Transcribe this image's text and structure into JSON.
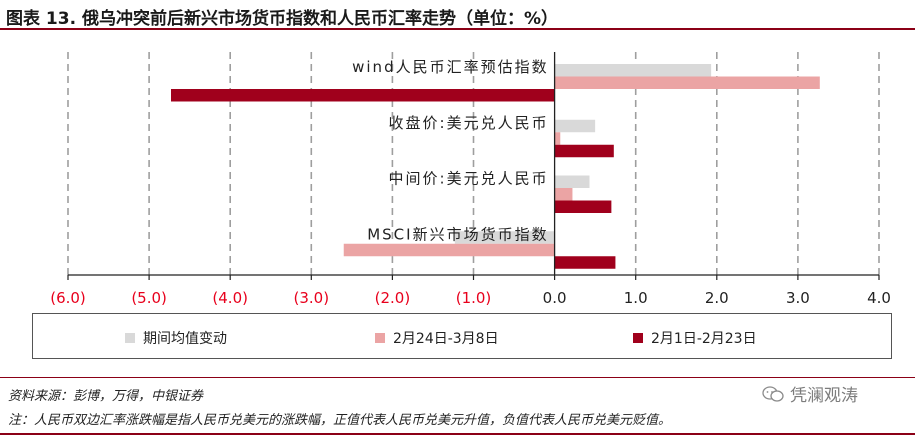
{
  "title": "图表 13. 俄乌冲突前后新兴市场货币指数和人民币汇率走势（单位：%）",
  "colors": {
    "accent_rule": "#8b0016",
    "series_avg": "#d9d9d9",
    "series_after": "#eba4a4",
    "series_before": "#a0001c",
    "negative_tick": "#e8001c",
    "grid": "#9e9e9e"
  },
  "chart_data": {
    "type": "bar",
    "orientation": "horizontal",
    "categories": [
      "wind人民币汇率预估指数",
      "收盘价:美元兑人民币",
      "中间价:美元兑人民币",
      "MSCI新兴市场货币指数"
    ],
    "category_display": [
      "wind人民币汇率预估指数",
      "收盘价:美元兑人民币",
      "中间价:美元兑人民币",
      "MSCI新兴市场货币指数"
    ],
    "series": [
      {
        "name": "期间均值变动",
        "values": [
          1.93,
          0.5,
          0.43,
          -1.23
        ]
      },
      {
        "name": "2月24日-3月8日",
        "values": [
          3.27,
          0.07,
          0.22,
          -2.6
        ]
      },
      {
        "name": "2月1日-2月23日",
        "values": [
          -4.73,
          0.73,
          0.7,
          0.75
        ]
      }
    ],
    "xlim": [
      -6.0,
      4.0
    ],
    "xticks": [
      -6.0,
      -5.0,
      -4.0,
      -3.0,
      -2.0,
      -1.0,
      0.0,
      1.0,
      2.0,
      3.0,
      4.0
    ],
    "xtick_labels": [
      "(6.0)",
      "(5.0)",
      "(4.0)",
      "(3.0)",
      "(2.0)",
      "(1.0)",
      "0.0",
      "1.0",
      "2.0",
      "3.0",
      "4.0"
    ],
    "grid": true,
    "grid_style": "dashed vertical",
    "legend_placement": "bottom"
  },
  "legend": [
    {
      "label": "期间均值变动"
    },
    {
      "label": "2月24日-3月8日"
    },
    {
      "label": "2月1日-2月23日"
    }
  ],
  "source": "资料来源：彭博，万得，中银证券",
  "note": "注：人民币双边汇率涨跌幅是指人民币兑美元的涨跌幅，正值代表人民币兑美元升值，负值代表人民币兑美元贬值。",
  "watermark": {
    "text": "凭澜观涛",
    "icon": "wechat-icon"
  }
}
